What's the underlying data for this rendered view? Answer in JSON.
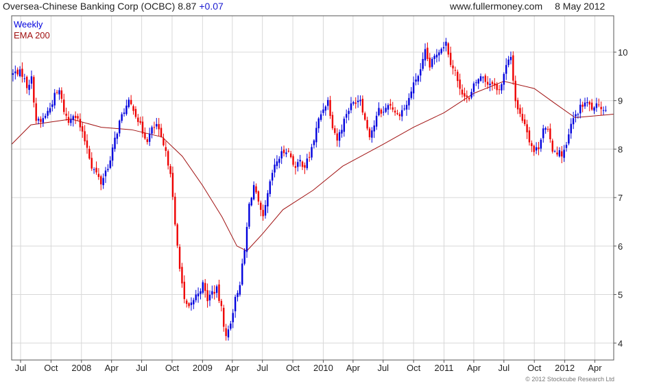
{
  "header": {
    "title": "Oversea-Chinese Banking Corp (OCBC)",
    "last_price": "8.87",
    "change": "+0.07",
    "site": "www.fullermoney.com",
    "date": "8 May 2012"
  },
  "copyright": "© 2012 Stockcube Research Ltd",
  "colors": {
    "up": "#0000dd",
    "down": "#ee0000",
    "ema": "#a01010",
    "grid": "#d8d8d8",
    "frame": "#555555"
  },
  "chart_data": {
    "type": "candlestick",
    "interval_label": "Weekly",
    "grid": true,
    "y_axis_position": "right",
    "ylim": [
      3.65,
      10.75
    ],
    "y_ticks": [
      4,
      5,
      6,
      7,
      8,
      9,
      10
    ],
    "x_range": [
      "2007-06-04",
      "2012-05-28"
    ],
    "x_ticks": [
      {
        "label": "Jul",
        "date": "2007-07-01"
      },
      {
        "label": "Oct",
        "date": "2007-10-01"
      },
      {
        "label": "2008",
        "date": "2008-01-01"
      },
      {
        "label": "Apr",
        "date": "2008-04-01"
      },
      {
        "label": "Jul",
        "date": "2008-07-01"
      },
      {
        "label": "Oct",
        "date": "2008-10-01"
      },
      {
        "label": "2009",
        "date": "2009-01-01"
      },
      {
        "label": "Apr",
        "date": "2009-04-01"
      },
      {
        "label": "Jul",
        "date": "2009-07-01"
      },
      {
        "label": "Oct",
        "date": "2009-10-01"
      },
      {
        "label": "2010",
        "date": "2010-01-01"
      },
      {
        "label": "Apr",
        "date": "2010-04-01"
      },
      {
        "label": "Jul",
        "date": "2010-07-01"
      },
      {
        "label": "Oct",
        "date": "2010-10-01"
      },
      {
        "label": "2011",
        "date": "2011-01-01"
      },
      {
        "label": "Apr",
        "date": "2011-04-01"
      },
      {
        "label": "Jul",
        "date": "2011-07-01"
      },
      {
        "label": "Oct",
        "date": "2011-10-01"
      },
      {
        "label": "2012",
        "date": "2012-01-01"
      },
      {
        "label": "Apr",
        "date": "2012-04-01"
      }
    ],
    "price_series": {
      "name": "Weekly",
      "approx_closes": [
        [
          "2007-06-08",
          9.55
        ],
        [
          "2007-06-22",
          9.6
        ],
        [
          "2007-07-06",
          9.55
        ],
        [
          "2007-07-20",
          9.3
        ],
        [
          "2007-08-03",
          9.45
        ],
        [
          "2007-08-17",
          8.6
        ],
        [
          "2007-08-31",
          8.55
        ],
        [
          "2007-09-14",
          8.7
        ],
        [
          "2007-09-28",
          8.85
        ],
        [
          "2007-10-12",
          9.1
        ],
        [
          "2007-10-26",
          9.2
        ],
        [
          "2007-11-09",
          8.8
        ],
        [
          "2007-11-23",
          8.55
        ],
        [
          "2007-12-07",
          8.75
        ],
        [
          "2007-12-21",
          8.6
        ],
        [
          "2008-01-04",
          8.3
        ],
        [
          "2008-01-18",
          8.05
        ],
        [
          "2008-02-01",
          7.65
        ],
        [
          "2008-02-15",
          7.5
        ],
        [
          "2008-02-29",
          7.3
        ],
        [
          "2008-03-14",
          7.55
        ],
        [
          "2008-03-28",
          7.75
        ],
        [
          "2008-04-11",
          8.2
        ],
        [
          "2008-04-25",
          8.55
        ],
        [
          "2008-05-09",
          8.8
        ],
        [
          "2008-05-23",
          8.95
        ],
        [
          "2008-06-06",
          8.85
        ],
        [
          "2008-06-20",
          8.6
        ],
        [
          "2008-07-04",
          8.35
        ],
        [
          "2008-07-18",
          8.2
        ],
        [
          "2008-08-01",
          8.4
        ],
        [
          "2008-08-15",
          8.5
        ],
        [
          "2008-08-29",
          8.2
        ],
        [
          "2008-09-12",
          7.9
        ],
        [
          "2008-09-26",
          7.55
        ],
        [
          "2008-10-10",
          6.4
        ],
        [
          "2008-10-24",
          5.6
        ],
        [
          "2008-11-07",
          4.85
        ],
        [
          "2008-11-21",
          4.7
        ],
        [
          "2008-12-05",
          4.9
        ],
        [
          "2008-12-19",
          5.05
        ],
        [
          "2009-01-02",
          5.2
        ],
        [
          "2009-01-16",
          4.9
        ],
        [
          "2009-01-30",
          5.05
        ],
        [
          "2009-02-13",
          5.1
        ],
        [
          "2009-02-27",
          4.7
        ],
        [
          "2009-03-13",
          4.1
        ],
        [
          "2009-03-27",
          4.45
        ],
        [
          "2009-04-10",
          4.9
        ],
        [
          "2009-04-24",
          5.25
        ],
        [
          "2009-05-08",
          5.9
        ],
        [
          "2009-05-22",
          6.85
        ],
        [
          "2009-06-05",
          7.25
        ],
        [
          "2009-06-19",
          6.85
        ],
        [
          "2009-07-03",
          6.55
        ],
        [
          "2009-07-17",
          7.05
        ],
        [
          "2009-07-31",
          7.5
        ],
        [
          "2009-08-14",
          7.75
        ],
        [
          "2009-08-28",
          7.9
        ],
        [
          "2009-09-11",
          8.0
        ],
        [
          "2009-09-25",
          7.85
        ],
        [
          "2009-10-09",
          7.6
        ],
        [
          "2009-10-23",
          7.75
        ],
        [
          "2009-11-06",
          7.65
        ],
        [
          "2009-11-20",
          7.85
        ],
        [
          "2009-12-04",
          8.2
        ],
        [
          "2009-12-18",
          8.6
        ],
        [
          "2010-01-01",
          8.85
        ],
        [
          "2010-01-15",
          9.0
        ],
        [
          "2010-01-29",
          8.5
        ],
        [
          "2010-02-12",
          8.2
        ],
        [
          "2010-02-26",
          8.45
        ],
        [
          "2010-03-12",
          8.75
        ],
        [
          "2010-03-26",
          8.9
        ],
        [
          "2010-04-09",
          9.0
        ],
        [
          "2010-04-23",
          9.05
        ],
        [
          "2010-05-07",
          8.6
        ],
        [
          "2010-05-21",
          8.3
        ],
        [
          "2010-06-04",
          8.5
        ],
        [
          "2010-06-18",
          8.8
        ],
        [
          "2010-07-02",
          8.75
        ],
        [
          "2010-07-16",
          8.95
        ],
        [
          "2010-07-30",
          8.85
        ],
        [
          "2010-08-13",
          8.7
        ],
        [
          "2010-08-27",
          8.8
        ],
        [
          "2010-09-10",
          8.9
        ],
        [
          "2010-09-24",
          9.2
        ],
        [
          "2010-10-08",
          9.45
        ],
        [
          "2010-10-22",
          9.6
        ],
        [
          "2010-11-05",
          10.0
        ],
        [
          "2010-11-19",
          9.7
        ],
        [
          "2010-12-03",
          9.9
        ],
        [
          "2010-12-17",
          10.05
        ],
        [
          "2011-01-07",
          10.2
        ],
        [
          "2011-01-21",
          9.8
        ],
        [
          "2011-02-04",
          9.6
        ],
        [
          "2011-02-18",
          9.2
        ],
        [
          "2011-03-04",
          9.15
        ],
        [
          "2011-03-18",
          9.0
        ],
        [
          "2011-04-01",
          9.3
        ],
        [
          "2011-04-15",
          9.45
        ],
        [
          "2011-04-29",
          9.5
        ],
        [
          "2011-05-13",
          9.35
        ],
        [
          "2011-05-27",
          9.4
        ],
        [
          "2011-06-10",
          9.2
        ],
        [
          "2011-06-24",
          9.35
        ],
        [
          "2011-07-08",
          9.7
        ],
        [
          "2011-07-22",
          9.9
        ],
        [
          "2011-08-05",
          9.0
        ],
        [
          "2011-08-19",
          8.7
        ],
        [
          "2011-09-02",
          8.55
        ],
        [
          "2011-09-16",
          8.2
        ],
        [
          "2011-09-30",
          7.95
        ],
        [
          "2011-10-14",
          8.05
        ],
        [
          "2011-10-28",
          8.45
        ],
        [
          "2011-11-11",
          8.35
        ],
        [
          "2011-11-25",
          8.0
        ],
        [
          "2011-12-09",
          7.95
        ],
        [
          "2011-12-23",
          7.9
        ],
        [
          "2012-01-06",
          8.05
        ],
        [
          "2012-01-20",
          8.5
        ],
        [
          "2012-02-03",
          8.7
        ],
        [
          "2012-02-17",
          8.85
        ],
        [
          "2012-03-02",
          8.95
        ],
        [
          "2012-03-16",
          8.9
        ],
        [
          "2012-03-30",
          8.8
        ],
        [
          "2012-04-13",
          8.95
        ],
        [
          "2012-04-27",
          8.8
        ],
        [
          "2012-05-08",
          8.87
        ]
      ]
    },
    "ema_series": {
      "name": "EMA 200",
      "approx_values": [
        [
          "2007-06-04",
          8.1
        ],
        [
          "2007-08-01",
          8.5
        ],
        [
          "2007-12-01",
          8.62
        ],
        [
          "2008-03-01",
          8.45
        ],
        [
          "2008-06-01",
          8.4
        ],
        [
          "2008-09-01",
          8.25
        ],
        [
          "2008-11-01",
          7.85
        ],
        [
          "2009-01-01",
          7.25
        ],
        [
          "2009-03-01",
          6.6
        ],
        [
          "2009-04-15",
          6.0
        ],
        [
          "2009-05-15",
          5.9
        ],
        [
          "2009-07-01",
          6.25
        ],
        [
          "2009-09-01",
          6.75
        ],
        [
          "2009-12-01",
          7.15
        ],
        [
          "2010-03-01",
          7.65
        ],
        [
          "2010-07-01",
          8.1
        ],
        [
          "2010-10-01",
          8.45
        ],
        [
          "2011-01-01",
          8.75
        ],
        [
          "2011-04-01",
          9.15
        ],
        [
          "2011-07-01",
          9.4
        ],
        [
          "2011-10-01",
          9.25
        ],
        [
          "2011-12-01",
          8.95
        ],
        [
          "2012-02-01",
          8.65
        ],
        [
          "2012-05-28",
          8.72
        ]
      ]
    }
  }
}
